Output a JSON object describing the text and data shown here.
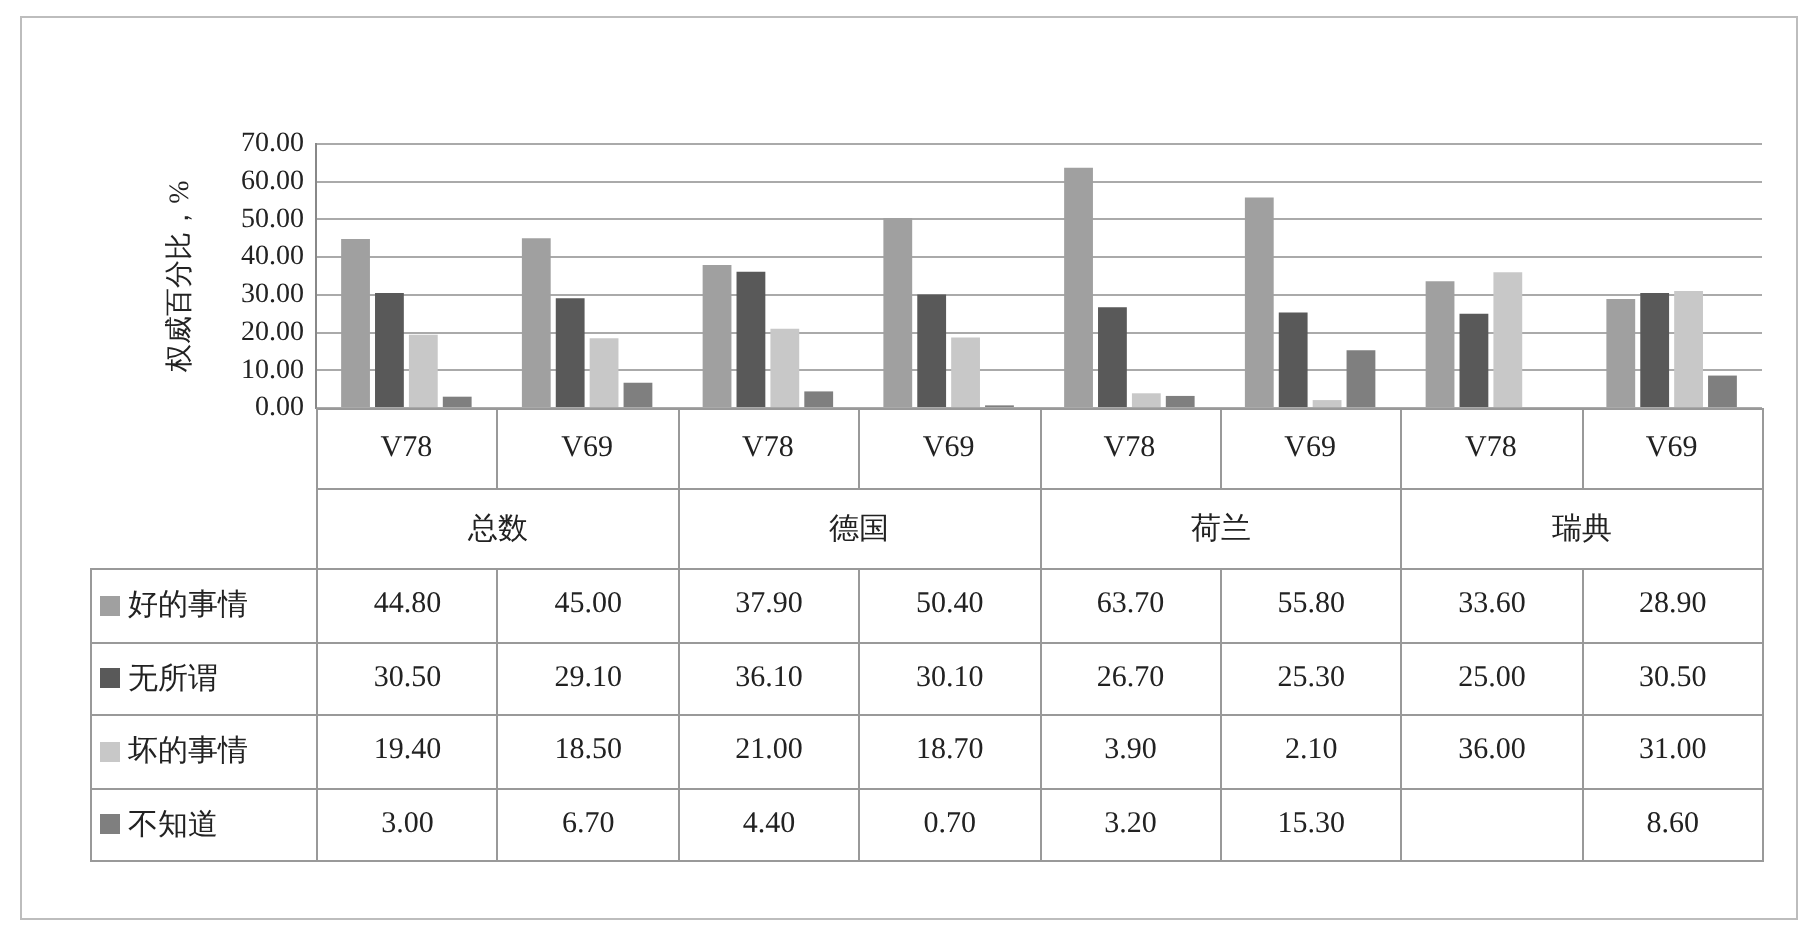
{
  "chart_data": {
    "type": "bar",
    "ylabel": "权威百分比，%",
    "categories": [
      "V78",
      "V69",
      "V78",
      "V69",
      "V78",
      "V69",
      "V78",
      "V69"
    ],
    "series": [
      {
        "name": "好的事情",
        "color": "#a0a0a0",
        "values": [
          44.8,
          45.0,
          37.9,
          50.4,
          63.7,
          55.8,
          33.6,
          28.9
        ],
        "value_labels": [
          "44.80",
          "45.00",
          "37.90",
          "50.40",
          "63.70",
          "55.80",
          "33.60",
          "28.90"
        ]
      },
      {
        "name": "无所谓",
        "color": "#595959",
        "values": [
          30.5,
          29.1,
          36.1,
          30.1,
          26.7,
          25.3,
          25.0,
          30.5
        ],
        "value_labels": [
          "30.50",
          "29.10",
          "36.10",
          "30.10",
          "26.70",
          "25.30",
          "25.00",
          "30.50"
        ]
      },
      {
        "name": "坏的事情",
        "color": "#c8c8c8",
        "values": [
          19.4,
          18.5,
          21.0,
          18.7,
          3.9,
          2.1,
          36.0,
          31.0
        ],
        "value_labels": [
          "19.40",
          "18.50",
          "21.00",
          "18.70",
          "3.90",
          "2.10",
          "36.00",
          "31.00"
        ]
      },
      {
        "name": "不知道",
        "color": "#7f7f7f",
        "values": [
          3.0,
          6.7,
          4.4,
          0.7,
          3.2,
          15.3,
          null,
          8.6
        ],
        "value_labels": [
          "3.00",
          "6.70",
          "4.40",
          "0.70",
          "3.20",
          "15.30",
          null,
          "8.60"
        ]
      }
    ],
    "ylim": [
      0,
      70
    ],
    "yticks": [
      {
        "value": 0,
        "label": "0.00"
      },
      {
        "value": 10,
        "label": "10.00"
      },
      {
        "value": 20,
        "label": "20.00"
      },
      {
        "value": 30,
        "label": "30.00"
      },
      {
        "value": 40,
        "label": "40.00"
      },
      {
        "value": 50,
        "label": "50.00"
      },
      {
        "value": 60,
        "label": "60.00"
      },
      {
        "value": 70,
        "label": "70.00"
      }
    ],
    "grid": "y",
    "legend": "bottom",
    "annotations": [
      "总数",
      "德国",
      "荷兰",
      "瑞典"
    ]
  }
}
